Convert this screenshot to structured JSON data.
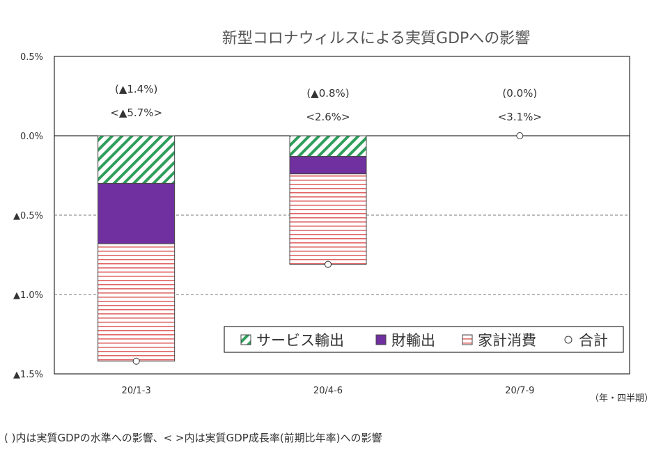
{
  "chart_data": {
    "type": "bar",
    "stacked": true,
    "title": "新型コロナウィルスによる実質GDPへの影響",
    "categories": [
      "20/1-3",
      "20/4-6",
      "20/7-9"
    ],
    "series": [
      {
        "name": "サービス輸出",
        "values": [
          -0.3,
          -0.13,
          0.0
        ],
        "color": "#2e9e5b",
        "pattern": "diagonal-hatch"
      },
      {
        "name": "財輸出",
        "values": [
          -0.38,
          -0.11,
          0.0
        ],
        "color": "#7030a0",
        "pattern": "solid"
      },
      {
        "name": "家計消費",
        "values": [
          -0.74,
          -0.57,
          0.0
        ],
        "color": "#e06666",
        "pattern": "horizontal-lines"
      }
    ],
    "total": {
      "name": "合計",
      "values": [
        -1.42,
        -0.81,
        0.0
      ],
      "marker": "circle-open"
    },
    "annotations_level": [
      "(▲1.4%)",
      "(▲0.8%)",
      "(0.0%)"
    ],
    "annotations_growth": [
      "<▲5.7%>",
      "<2.6%>",
      "<3.1%>"
    ],
    "ylim": [
      -1.5,
      0.5
    ],
    "yticks": [
      0.5,
      0.0,
      -0.5,
      -1.0,
      -1.5
    ],
    "ytick_labels": [
      "0.5%",
      "0.0%",
      "▲0.5%",
      "▲1.0%",
      "▲1.5%"
    ],
    "xlabel": "（年・四半期）",
    "ylabel": "",
    "grid": "horizontal-dashed",
    "legend_position": "bottom-right"
  },
  "footnote": "(  )内は実質GDPの水準への影響、<   >内は実質GDP成長率(前期比年率)への影響"
}
